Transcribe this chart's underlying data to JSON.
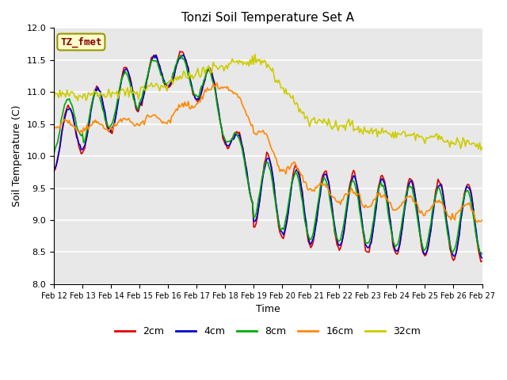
{
  "title": "Tonzi Soil Temperature Set A",
  "xlabel": "Time",
  "ylabel": "Soil Temperature (C)",
  "ylim": [
    8.0,
    12.0
  ],
  "annotation": "TZ_fmet",
  "background_color": "#ffffff",
  "plot_bg_color": "#e8e8e8",
  "legend_labels": [
    "2cm",
    "4cm",
    "8cm",
    "16cm",
    "32cm"
  ],
  "legend_colors": [
    "#dd0000",
    "#0000cc",
    "#00aa00",
    "#ff8800",
    "#cccc00"
  ],
  "line_width": 1.2,
  "x_tick_labels": [
    "Feb 12",
    "Feb 13",
    "Feb 14",
    "Feb 15",
    "Feb 16",
    "Feb 17",
    "Feb 18",
    "Feb 19",
    "Feb 20",
    "Feb 21",
    "Feb 22",
    "Feb 23",
    "Feb 24",
    "Feb 25",
    "Feb 26",
    "Feb 27"
  ],
  "x_tick_positions": [
    0,
    24,
    48,
    72,
    96,
    120,
    144,
    168,
    192,
    216,
    240,
    264,
    288,
    312,
    336,
    360
  ],
  "y_ticks": [
    8.0,
    8.5,
    9.0,
    9.5,
    10.0,
    10.5,
    11.0,
    11.5,
    12.0
  ]
}
